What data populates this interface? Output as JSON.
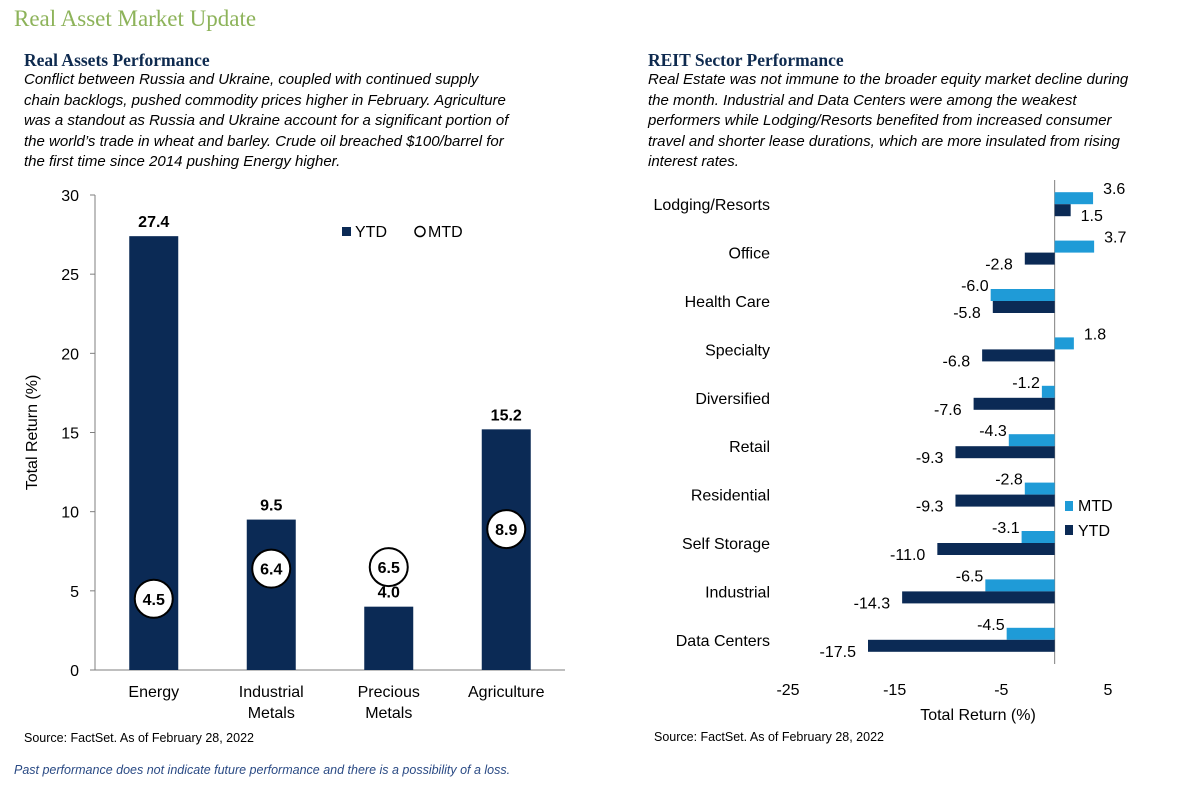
{
  "page": {
    "title": "Real Asset Market Update",
    "disclaimer": "Past performance does not indicate future performance and there is a possibility of a loss."
  },
  "left_panel": {
    "title": "Real Assets Performance",
    "description_lines": [
      "Conflict between Russia and Ukraine, coupled with continued supply",
      "chain backlogs, pushed commodity prices higher in February. Agriculture",
      "was a standout as Russia and Ukraine account for a significant portion of",
      "the world’s trade in wheat and barley. Crude oil breached $100/barrel for",
      "the first time since 2014 pushing Energy higher."
    ],
    "source": "Source: FactSet. As of February 28, 2022"
  },
  "right_panel": {
    "title": "REIT Sector Performance",
    "description_lines": [
      "Real Estate was not immune to the broader equity market decline during",
      "the month. Industrial and Data Centers were among the weakest",
      "performers while Lodging/Resorts benefited from increased consumer",
      "travel and shorter lease durations, which are more insulated from rising",
      "interest rates."
    ],
    "source": "Source: FactSet. As of February 28, 2022"
  },
  "colors": {
    "ytd": "#0b2a55",
    "mtd": "#1f9bd7",
    "title_green": "#8db35a",
    "heading_navy": "#0e2a4f",
    "disclaimer_blue": "#2a4a84"
  },
  "chart_data": [
    {
      "type": "bar",
      "categories": [
        [
          "Energy"
        ],
        [
          "Industrial",
          "Metals"
        ],
        [
          "Precious",
          "Metals"
        ],
        [
          "Agriculture"
        ]
      ],
      "series": [
        {
          "name": "YTD",
          "values": [
            27.4,
            9.5,
            4.0,
            15.2
          ],
          "labels": [
            "27.4",
            "9.5",
            "4.0",
            "15.2"
          ]
        },
        {
          "name": "MTD",
          "values": [
            4.5,
            6.4,
            6.5,
            8.9
          ],
          "labels": [
            "4.5",
            "6.4",
            "6.5",
            "8.9"
          ],
          "marker": "circle"
        }
      ],
      "ylabel": "Total Return (%)",
      "xlabel": "",
      "ylim": [
        0,
        30
      ],
      "yticks": [
        0,
        5,
        10,
        15,
        20,
        25,
        30
      ],
      "legend": "top-right",
      "grid": false
    },
    {
      "type": "bar",
      "orientation": "horizontal",
      "categories": [
        "Lodging/Resorts",
        "Office",
        "Health Care",
        "Specialty",
        "Diversified",
        "Retail",
        "Residential",
        "Self Storage",
        "Industrial",
        "Data Centers"
      ],
      "series": [
        {
          "name": "MTD",
          "values": [
            3.6,
            3.7,
            -6.0,
            1.8,
            -1.2,
            -4.3,
            -2.8,
            -3.1,
            -6.5,
            -4.5
          ],
          "labels": [
            "3.6",
            "3.7",
            "-6.0",
            "1.8",
            "-1.2",
            "-4.3",
            "-2.8",
            "-3.1",
            "-6.5",
            "-4.5"
          ]
        },
        {
          "name": "YTD",
          "values": [
            1.5,
            -2.8,
            -5.8,
            -6.8,
            -7.6,
            -9.3,
            -9.3,
            -11.0,
            -14.3,
            -17.5
          ],
          "labels": [
            "1.5",
            "-2.8",
            "-5.8",
            "-6.8",
            "-7.6",
            "-9.3",
            "-9.3",
            "-11.0",
            "-14.3",
            "-17.5"
          ]
        }
      ],
      "xlabel": "Total Return (%)",
      "ylabel": "",
      "xlim": [
        -25,
        5
      ],
      "xticks": [
        -25,
        -15,
        -5,
        5
      ],
      "legend": "right",
      "grid": false
    }
  ]
}
